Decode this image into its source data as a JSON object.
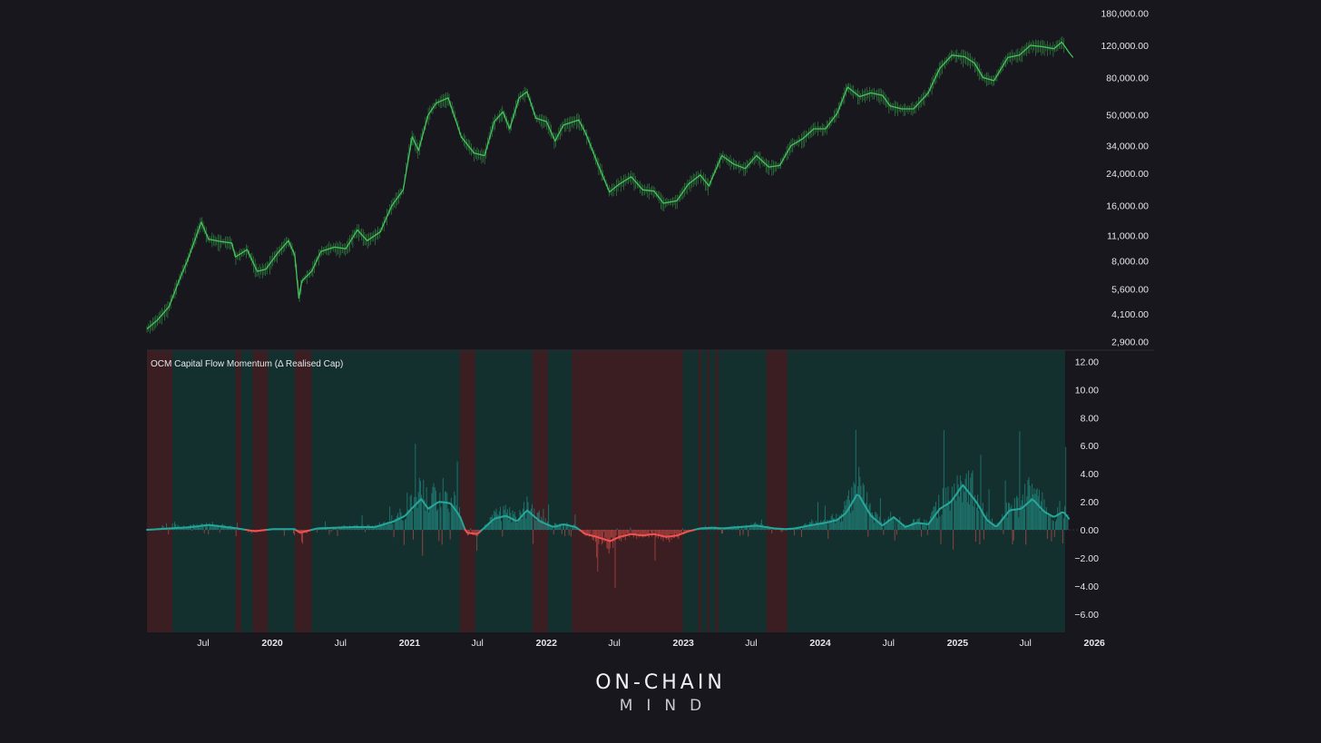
{
  "colors": {
    "background": "#17171d",
    "price_line": "#43c45a",
    "positive": "#26a69a",
    "negative": "#ef5350",
    "regime_positive": "#14302e",
    "regime_negative": "#3a1e22"
  },
  "chart_data": [
    {
      "type": "line",
      "scale": "log",
      "title": "",
      "ylim": [
        2600,
        185000
      ],
      "y_ticks": [
        "2,900.00",
        "4,100.00",
        "5,600.00",
        "8,000.00",
        "11,000.00",
        "16,000.00",
        "24,000.00",
        "34,000.00",
        "50,000.00",
        "80,000.00",
        "120,000.00",
        "180,000.00"
      ],
      "y_tick_values": [
        2900,
        4100,
        5600,
        8000,
        11000,
        16000,
        24000,
        34000,
        50000,
        80000,
        120000,
        180000
      ],
      "series": [
        {
          "x": [
            "2019-02-01",
            "2019-03-01",
            "2019-04-01",
            "2019-05-01",
            "2019-05-20",
            "2019-06-26",
            "2019-07-15",
            "2019-08-15",
            "2019-09-15",
            "2019-09-25",
            "2019-10-26",
            "2019-11-22",
            "2019-12-15",
            "2020-01-15",
            "2020-02-13",
            "2020-03-01",
            "2020-03-12",
            "2020-03-20",
            "2020-04-15",
            "2020-05-10",
            "2020-06-15",
            "2020-07-15",
            "2020-08-15",
            "2020-09-10",
            "2020-10-15",
            "2020-11-15",
            "2020-12-15",
            "2021-01-08",
            "2021-01-25",
            "2021-02-20",
            "2021-03-13",
            "2021-04-14",
            "2021-05-19",
            "2021-06-22",
            "2021-07-20",
            "2021-08-15",
            "2021-09-07",
            "2021-09-25",
            "2021-10-20",
            "2021-11-10",
            "2021-12-04",
            "2022-01-01",
            "2022-01-24",
            "2022-02-15",
            "2022-03-28",
            "2022-04-15",
            "2022-05-12",
            "2022-06-18",
            "2022-07-15",
            "2022-08-15",
            "2022-09-15",
            "2022-10-15",
            "2022-11-09",
            "2022-12-15",
            "2023-01-15",
            "2023-02-15",
            "2023-03-10",
            "2023-04-14",
            "2023-05-15",
            "2023-06-15",
            "2023-07-15",
            "2023-08-17",
            "2023-09-15",
            "2023-10-15",
            "2023-11-15",
            "2023-12-15",
            "2024-01-15",
            "2024-02-15",
            "2024-03-14",
            "2024-04-15",
            "2024-05-15",
            "2024-06-15",
            "2024-07-05",
            "2024-08-05",
            "2024-09-06",
            "2024-10-15",
            "2024-11-15",
            "2024-12-17",
            "2025-01-20",
            "2025-02-15",
            "2025-03-10",
            "2025-04-08",
            "2025-05-15",
            "2025-06-15",
            "2025-07-14",
            "2025-08-14",
            "2025-09-15",
            "2025-10-06",
            "2025-10-25",
            "2025-11-05"
          ],
          "values": [
            3400,
            3800,
            4500,
            6500,
            8000,
            13000,
            10500,
            10200,
            10000,
            8400,
            9200,
            7000,
            7200,
            8800,
            10300,
            8600,
            5000,
            6200,
            7000,
            9000,
            9500,
            9300,
            11800,
            10300,
            11500,
            16000,
            19500,
            38000,
            32000,
            50000,
            58000,
            62000,
            38000,
            31000,
            30000,
            46000,
            52000,
            42000,
            62000,
            67000,
            48000,
            46000,
            36000,
            44000,
            47000,
            40000,
            29000,
            19000,
            21000,
            23000,
            19500,
            19200,
            16500,
            17000,
            21000,
            23500,
            20500,
            30000,
            27000,
            25500,
            30000,
            26000,
            26500,
            34000,
            37000,
            42000,
            42000,
            51000,
            71000,
            63000,
            66000,
            64000,
            56000,
            54000,
            54000,
            66000,
            90000,
            106000,
            104000,
            96000,
            80000,
            77000,
            103000,
            106000,
            120000,
            118000,
            115000,
            125000,
            110000,
            103000
          ]
        }
      ]
    },
    {
      "type": "area",
      "title": "OCM Capital Flow Momentum (Δ Realised Cap)",
      "ylim": [
        -7.3,
        12.8
      ],
      "y_ticks": [
        "12.00",
        "10.00",
        "8.00",
        "6.00",
        "4.00",
        "2.00",
        "0.00",
        "−2.00",
        "−4.00",
        "−6.00"
      ],
      "y_tick_values": [
        12,
        10,
        8,
        6,
        4,
        2,
        0,
        -2,
        -4,
        -6
      ],
      "x_ticks": [
        "Jul",
        "2020",
        "Jul",
        "2021",
        "Jul",
        "2022",
        "Jul",
        "2023",
        "Jul",
        "2024",
        "Jul",
        "2025",
        "Jul",
        "2026"
      ],
      "x_tick_dates": [
        "2019-07-01",
        "2020-01-01",
        "2020-07-01",
        "2021-01-01",
        "2021-07-01",
        "2022-01-01",
        "2022-07-01",
        "2023-01-01",
        "2023-07-01",
        "2024-01-01",
        "2024-07-01",
        "2025-01-01",
        "2025-07-01",
        "2026-01-01"
      ],
      "regimes_negative": [
        [
          "2019-02-01",
          "2019-04-10"
        ],
        [
          "2019-09-25",
          "2019-10-10"
        ],
        [
          "2019-11-10",
          "2019-12-20"
        ],
        [
          "2020-03-01",
          "2020-04-15"
        ],
        [
          "2021-05-15",
          "2021-06-25"
        ],
        [
          "2021-11-25",
          "2022-01-05"
        ],
        [
          "2022-03-10",
          "2022-12-31"
        ],
        [
          "2023-02-10",
          "2023-02-18"
        ],
        [
          "2023-03-05",
          "2023-03-12"
        ],
        [
          "2023-03-28",
          "2023-04-05"
        ],
        [
          "2023-08-10",
          "2023-10-05"
        ]
      ],
      "regime_range": [
        "2019-02-01",
        "2025-10-15"
      ],
      "series": [
        {
          "x": [
            "2019-02-01",
            "2019-06-01",
            "2019-07-15",
            "2019-10-01",
            "2019-11-15",
            "2020-01-01",
            "2020-03-01",
            "2020-03-15",
            "2020-05-01",
            "2020-08-01",
            "2020-10-01",
            "2020-11-20",
            "2020-12-20",
            "2021-01-10",
            "2021-02-01",
            "2021-02-20",
            "2021-03-20",
            "2021-04-20",
            "2021-05-15",
            "2021-06-01",
            "2021-07-01",
            "2021-08-15",
            "2021-09-15",
            "2021-10-15",
            "2021-11-10",
            "2021-12-15",
            "2022-01-20",
            "2022-02-15",
            "2022-03-20",
            "2022-04-15",
            "2022-05-15",
            "2022-06-20",
            "2022-07-15",
            "2022-08-15",
            "2022-09-15",
            "2022-10-15",
            "2022-11-15",
            "2022-12-15",
            "2023-01-15",
            "2023-02-15",
            "2023-03-20",
            "2023-04-15",
            "2023-06-01",
            "2023-07-15",
            "2023-09-01",
            "2023-10-01",
            "2023-10-25",
            "2023-12-01",
            "2024-01-15",
            "2024-02-15",
            "2024-03-10",
            "2024-04-10",
            "2024-05-15",
            "2024-06-15",
            "2024-07-15",
            "2024-08-15",
            "2024-09-15",
            "2024-10-15",
            "2024-11-15",
            "2024-12-15",
            "2025-01-15",
            "2025-02-20",
            "2025-03-20",
            "2025-04-15",
            "2025-05-20",
            "2025-06-20",
            "2025-07-20",
            "2025-08-20",
            "2025-09-15",
            "2025-10-10",
            "2025-10-25"
          ],
          "values": [
            0.0,
            0.2,
            0.35,
            0.1,
            -0.1,
            0.05,
            0.05,
            -0.2,
            0.1,
            0.2,
            0.2,
            0.6,
            1.0,
            1.6,
            2.2,
            1.5,
            2.0,
            1.9,
            1.0,
            -0.2,
            -0.3,
            0.8,
            1.0,
            0.6,
            1.4,
            0.6,
            0.2,
            0.4,
            0.2,
            -0.3,
            -0.5,
            -0.8,
            -0.5,
            -0.3,
            -0.4,
            -0.3,
            -0.5,
            -0.4,
            -0.1,
            0.1,
            0.15,
            0.1,
            0.2,
            0.3,
            0.1,
            0.05,
            0.1,
            0.3,
            0.5,
            0.7,
            1.2,
            2.6,
            1.0,
            0.3,
            0.9,
            0.2,
            0.5,
            0.4,
            1.5,
            2.0,
            3.2,
            2.0,
            0.7,
            0.2,
            1.4,
            1.5,
            2.2,
            1.3,
            0.9,
            1.3,
            0.8
          ]
        }
      ]
    }
  ],
  "brand": {
    "main": "ON-CHAIN",
    "sub": "MIND"
  }
}
